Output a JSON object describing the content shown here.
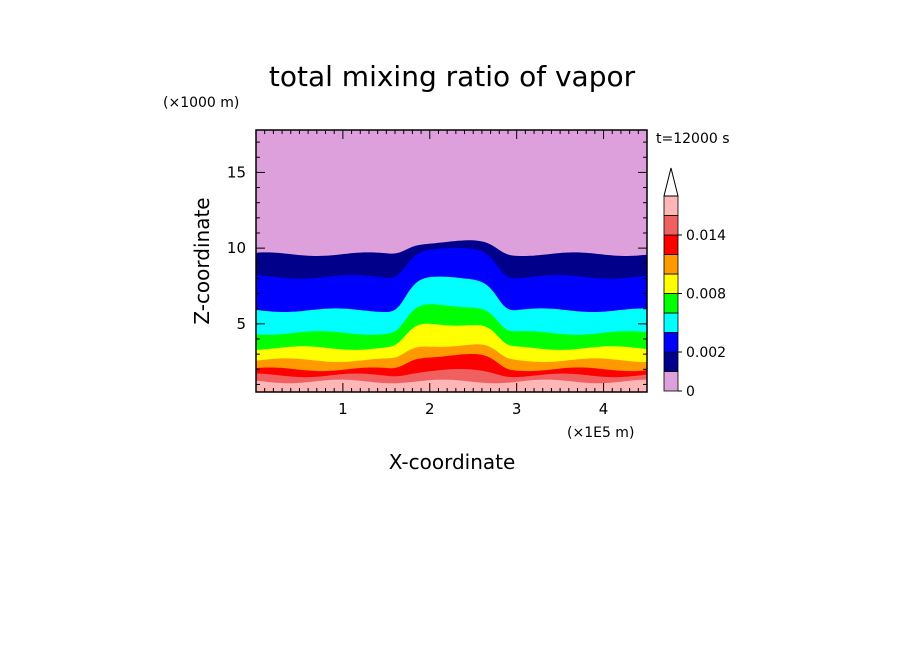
{
  "chart_data": {
    "type": "heatmap",
    "title": "total mixing ratio of vapor",
    "xlabel": "X-coordinate",
    "ylabel": "Z-coordinate",
    "x_unit": "(×1E5 m)",
    "y_unit": "(×1000 m)",
    "time_label": "t=12000 s",
    "xlim": [
      0,
      4.5
    ],
    "ylim": [
      0.5,
      17.8
    ],
    "x_ticks": [
      {
        "value": 1,
        "label": "1"
      },
      {
        "value": 2,
        "label": "2"
      },
      {
        "value": 3,
        "label": "3"
      },
      {
        "value": 4,
        "label": "4"
      }
    ],
    "y_ticks": [
      {
        "value": 5,
        "label": "5"
      },
      {
        "value": 10,
        "label": "10"
      },
      {
        "value": 15,
        "label": "15"
      }
    ],
    "colorbar": {
      "levels": [
        0,
        0.001,
        0.002,
        0.004,
        0.006,
        0.008,
        0.01,
        0.012,
        0.014,
        0.016
      ],
      "colors": [
        "#dda0dd",
        "#00008b",
        "#0000ff",
        "#00ffff",
        "#00ff00",
        "#ffff00",
        "#ff9900",
        "#ff0000",
        "#f06060",
        "#ffb6b6"
      ],
      "tick_labels": [
        {
          "value": 0,
          "label": "0"
        },
        {
          "value": 0.002,
          "label": "0.002"
        },
        {
          "value": 0.008,
          "label": "0.008"
        },
        {
          "value": 0.014,
          "label": "0.014"
        }
      ],
      "extend": "max"
    },
    "layers": [
      {
        "name": "0-0.001",
        "color": "#dda0dd",
        "z_top_ambient": 17.8,
        "z_top_center": 17.8
      },
      {
        "name": "0.001-0.002",
        "color": "#00008b",
        "z_top_ambient": 9.6,
        "z_top_center": 10.4
      },
      {
        "name": "0.002-0.004",
        "color": "#0000ff",
        "z_top_ambient": 8.1,
        "z_top_center": 9.9
      },
      {
        "name": "0.004-0.006",
        "color": "#00ffff",
        "z_top_ambient": 5.9,
        "z_top_center": 8.0
      },
      {
        "name": "0.006-0.008",
        "color": "#00ff00",
        "z_top_ambient": 4.4,
        "z_top_center": 6.2
      },
      {
        "name": "0.008-0.010",
        "color": "#ffff00",
        "z_top_ambient": 3.4,
        "z_top_center": 5.0
      },
      {
        "name": "0.010-0.012",
        "color": "#ff9900",
        "z_top_ambient": 2.6,
        "z_top_center": 3.6
      },
      {
        "name": "0.012-0.014",
        "color": "#ff0000",
        "z_top_ambient": 2.0,
        "z_top_center": 2.9
      },
      {
        "name": "0.014-0.016",
        "color": "#f06060",
        "z_top_ambient": 1.6,
        "z_top_center": 1.9
      },
      {
        "name": ">0.016",
        "color": "#ffb6b6",
        "z_top_ambient": 1.2,
        "z_top_center": 1.2
      }
    ]
  }
}
